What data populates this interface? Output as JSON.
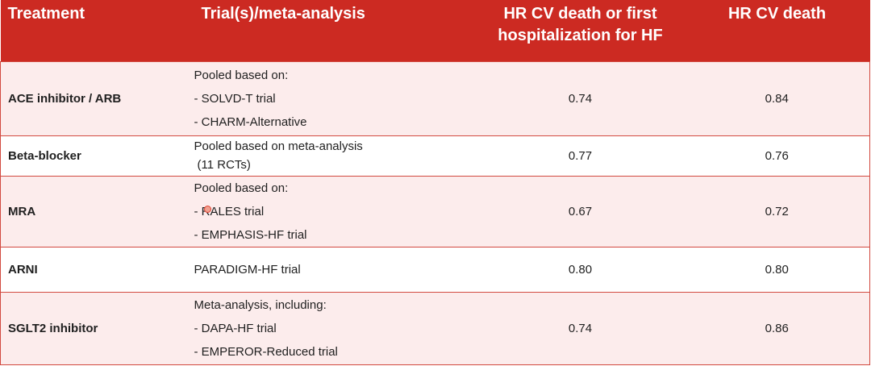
{
  "headers": {
    "treatment": "Treatment",
    "trials": "Trial(s)/meta-analysis",
    "hr_combined_line1": "HR CV death or first",
    "hr_combined_line2": "hospitalization for HF",
    "hr_cv_death": "HR CV death"
  },
  "rows": [
    {
      "treatment": "ACE inhibitor / ARB",
      "trial_lines": [
        "Pooled based on:",
        "- SOLVD-T trial",
        "- CHARM-Alternative"
      ],
      "hr_combined": "0.74",
      "hr_cv_death": "0.84"
    },
    {
      "treatment": "Beta-blocker",
      "trial_lines": [
        "Pooled based on meta-analysis",
        " (11 RCTs)"
      ],
      "hr_combined": "0.77",
      "hr_cv_death": "0.76"
    },
    {
      "treatment": "MRA",
      "trial_lines": [
        "Pooled based on:",
        "- RALES trial",
        "- EMPHASIS-HF trial"
      ],
      "hr_combined": "0.67",
      "hr_cv_death": "0.72"
    },
    {
      "treatment": "ARNI",
      "trial_lines": [
        "PARADIGM-HF trial"
      ],
      "hr_combined": "0.80",
      "hr_cv_death": "0.80"
    },
    {
      "treatment": "SGLT2 inhibitor",
      "trial_lines": [
        "Meta-analysis, including:",
        "- DAPA-HF trial",
        "- EMPEROR-Reduced trial"
      ],
      "hr_combined": "0.74",
      "hr_cv_death": "0.86"
    }
  ],
  "colors": {
    "header_bg": "#cc2a22",
    "row_tint": "#fcecec",
    "border": "#d24a40"
  }
}
